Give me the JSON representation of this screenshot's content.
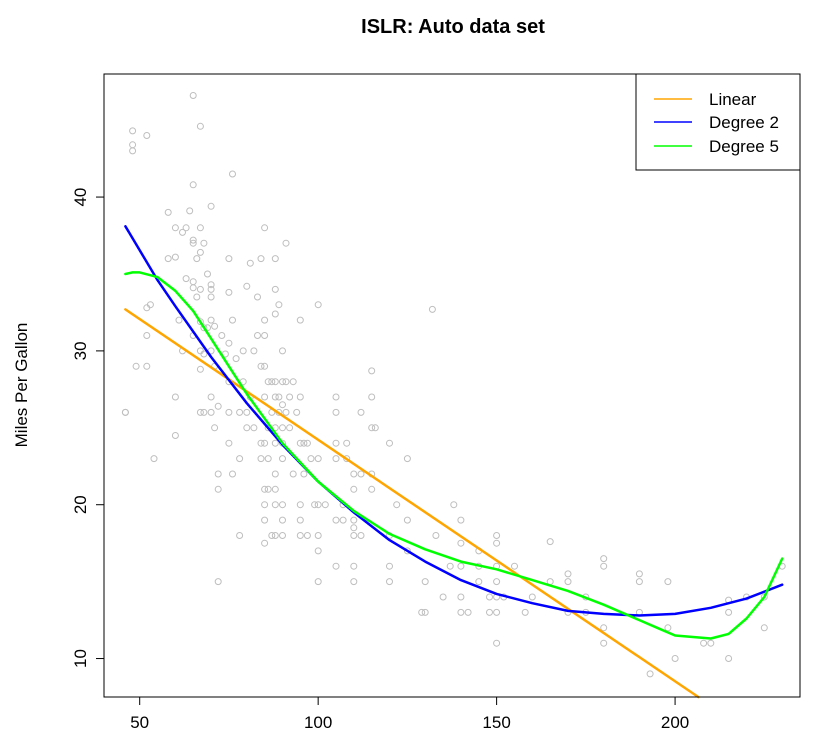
{
  "chart_data": {
    "type": "scatter",
    "title": "ISLR: Auto data set",
    "xlabel": "",
    "ylabel": "Miles Per Gallon",
    "xlim": [
      40,
      235
    ],
    "ylim": [
      7.5,
      48
    ],
    "x_ticks": [
      50,
      100,
      150,
      200
    ],
    "y_ticks": [
      10,
      20,
      30,
      40
    ],
    "grid": false,
    "legend_position": "top-right",
    "colors": {
      "points": "#bebebe",
      "linear": "#ffa500",
      "degree2": "#0000ff",
      "degree5": "#00ff00"
    },
    "scatter": [
      [
        46,
        26
      ],
      [
        46,
        26
      ],
      [
        48,
        43
      ],
      [
        48,
        43.4
      ],
      [
        48,
        44.3
      ],
      [
        49,
        29
      ],
      [
        52,
        29
      ],
      [
        52,
        31
      ],
      [
        52,
        44
      ],
      [
        52,
        32.8
      ],
      [
        53,
        33
      ],
      [
        54,
        23
      ],
      [
        58,
        39
      ],
      [
        58,
        36
      ],
      [
        60,
        38
      ],
      [
        60,
        36.1
      ],
      [
        60,
        27
      ],
      [
        60,
        24.5
      ],
      [
        61,
        32
      ],
      [
        62,
        37.7
      ],
      [
        62,
        30
      ],
      [
        63,
        38
      ],
      [
        63,
        34.7
      ],
      [
        64,
        39.1
      ],
      [
        65,
        46.6
      ],
      [
        65,
        40.8
      ],
      [
        65,
        37.2
      ],
      [
        65,
        37
      ],
      [
        65,
        34.1
      ],
      [
        65,
        34.5
      ],
      [
        65,
        31
      ],
      [
        66,
        36
      ],
      [
        66,
        33.5
      ],
      [
        67,
        44.6
      ],
      [
        67,
        38
      ],
      [
        67,
        36.4
      ],
      [
        67,
        34
      ],
      [
        67,
        31.9
      ],
      [
        67,
        30
      ],
      [
        67,
        28.8
      ],
      [
        67,
        26
      ],
      [
        68,
        37
      ],
      [
        68,
        31.5
      ],
      [
        68,
        29.8
      ],
      [
        68,
        26
      ],
      [
        69,
        35
      ],
      [
        69,
        31.5
      ],
      [
        70,
        39.4
      ],
      [
        70,
        34.3
      ],
      [
        70,
        34
      ],
      [
        70,
        33.5
      ],
      [
        70,
        32
      ],
      [
        70,
        30
      ],
      [
        70,
        27
      ],
      [
        70,
        26
      ],
      [
        71,
        31.6
      ],
      [
        71,
        29
      ],
      [
        71,
        25
      ],
      [
        72,
        21
      ],
      [
        72,
        22
      ],
      [
        72,
        15
      ],
      [
        72,
        26.4
      ],
      [
        73,
        31
      ],
      [
        74,
        29.8
      ],
      [
        75,
        36
      ],
      [
        75,
        33.8
      ],
      [
        75,
        30.5
      ],
      [
        75,
        28
      ],
      [
        75,
        26
      ],
      [
        75,
        24
      ],
      [
        76,
        41.5
      ],
      [
        76,
        32
      ],
      [
        76,
        22
      ],
      [
        77,
        29.5
      ],
      [
        78,
        23
      ],
      [
        78,
        18
      ],
      [
        78,
        26
      ],
      [
        79,
        28
      ],
      [
        79,
        30
      ],
      [
        80,
        34.2
      ],
      [
        80,
        26
      ],
      [
        80,
        25
      ],
      [
        81,
        35.7
      ],
      [
        81,
        27
      ],
      [
        82,
        30
      ],
      [
        82,
        25
      ],
      [
        83,
        33.5
      ],
      [
        83,
        31
      ],
      [
        84,
        36
      ],
      [
        84,
        29
      ],
      [
        84,
        24
      ],
      [
        84,
        23
      ],
      [
        85,
        38
      ],
      [
        85,
        32
      ],
      [
        85,
        31
      ],
      [
        85,
        29
      ],
      [
        85,
        27
      ],
      [
        85,
        24
      ],
      [
        85,
        21
      ],
      [
        85,
        20
      ],
      [
        85,
        19
      ],
      [
        85,
        17.5
      ],
      [
        86,
        28
      ],
      [
        86,
        25
      ],
      [
        86,
        23
      ],
      [
        86,
        21
      ],
      [
        87,
        28
      ],
      [
        87,
        26
      ],
      [
        87,
        18
      ],
      [
        88,
        36
      ],
      [
        88,
        34
      ],
      [
        88,
        32.4
      ],
      [
        88,
        28
      ],
      [
        88,
        27
      ],
      [
        88,
        25
      ],
      [
        88,
        24
      ],
      [
        88,
        22
      ],
      [
        88,
        21
      ],
      [
        88,
        20
      ],
      [
        88,
        18
      ],
      [
        89,
        33
      ],
      [
        89,
        27
      ],
      [
        89,
        26
      ],
      [
        90,
        30
      ],
      [
        90,
        28
      ],
      [
        90,
        26.5
      ],
      [
        90,
        25
      ],
      [
        90,
        24
      ],
      [
        90,
        23
      ],
      [
        90,
        20
      ],
      [
        90,
        19
      ],
      [
        90,
        18
      ],
      [
        91,
        37
      ],
      [
        91,
        28
      ],
      [
        91,
        26
      ],
      [
        92,
        27
      ],
      [
        92,
        25
      ],
      [
        93,
        28
      ],
      [
        93,
        22
      ],
      [
        94,
        26
      ],
      [
        95,
        32
      ],
      [
        95,
        27
      ],
      [
        95,
        24
      ],
      [
        95,
        20
      ],
      [
        95,
        19
      ],
      [
        95,
        18
      ],
      [
        96,
        24
      ],
      [
        96,
        22
      ],
      [
        97,
        24
      ],
      [
        97,
        18
      ],
      [
        98,
        23
      ],
      [
        99,
        20
      ],
      [
        100,
        33
      ],
      [
        100,
        23
      ],
      [
        100,
        20
      ],
      [
        100,
        18
      ],
      [
        100,
        17
      ],
      [
        100,
        15
      ],
      [
        102,
        20
      ],
      [
        105,
        27
      ],
      [
        105,
        26
      ],
      [
        105,
        24
      ],
      [
        105,
        23
      ],
      [
        105,
        19
      ],
      [
        105,
        16
      ],
      [
        107,
        20
      ],
      [
        107,
        19
      ],
      [
        108,
        24
      ],
      [
        108,
        23
      ],
      [
        110,
        22
      ],
      [
        110,
        21
      ],
      [
        110,
        19
      ],
      [
        110,
        18.5
      ],
      [
        110,
        18
      ],
      [
        110,
        16
      ],
      [
        110,
        15
      ],
      [
        112,
        26
      ],
      [
        112,
        22
      ],
      [
        112,
        18
      ],
      [
        115,
        28.7
      ],
      [
        115,
        27
      ],
      [
        115,
        25
      ],
      [
        115,
        22
      ],
      [
        115,
        21
      ],
      [
        116,
        25
      ],
      [
        120,
        24
      ],
      [
        120,
        18
      ],
      [
        120,
        16
      ],
      [
        120,
        15
      ],
      [
        122,
        20
      ],
      [
        125,
        23
      ],
      [
        125,
        19
      ],
      [
        125,
        17
      ],
      [
        129,
        13
      ],
      [
        130,
        13
      ],
      [
        130,
        15
      ],
      [
        132,
        32.7
      ],
      [
        133,
        18
      ],
      [
        135,
        14
      ],
      [
        137,
        16
      ],
      [
        138,
        20
      ],
      [
        140,
        19
      ],
      [
        140,
        17.5
      ],
      [
        140,
        16
      ],
      [
        140,
        14
      ],
      [
        140,
        13
      ],
      [
        142,
        13
      ],
      [
        145,
        17
      ],
      [
        145,
        16
      ],
      [
        145,
        15
      ],
      [
        148,
        14
      ],
      [
        148,
        13
      ],
      [
        150,
        18
      ],
      [
        150,
        17.5
      ],
      [
        150,
        16
      ],
      [
        150,
        15
      ],
      [
        150,
        14
      ],
      [
        150,
        13
      ],
      [
        150,
        11
      ],
      [
        152,
        14
      ],
      [
        155,
        16
      ],
      [
        158,
        13
      ],
      [
        160,
        14
      ],
      [
        165,
        17.6
      ],
      [
        165,
        15
      ],
      [
        170,
        15.5
      ],
      [
        170,
        15
      ],
      [
        170,
        13
      ],
      [
        175,
        14
      ],
      [
        175,
        13
      ],
      [
        180,
        16.5
      ],
      [
        180,
        16
      ],
      [
        180,
        12
      ],
      [
        180,
        11
      ],
      [
        190,
        15.5
      ],
      [
        190,
        15
      ],
      [
        190,
        13
      ],
      [
        193,
        9
      ],
      [
        198,
        15
      ],
      [
        198,
        12
      ],
      [
        200,
        10
      ],
      [
        208,
        11
      ],
      [
        210,
        11
      ],
      [
        215,
        13.8
      ],
      [
        215,
        13
      ],
      [
        215,
        10
      ],
      [
        220,
        14
      ],
      [
        225,
        14
      ],
      [
        225,
        12
      ],
      [
        230,
        16
      ]
    ],
    "series": [
      {
        "name": "Linear",
        "x": [
          46,
          206.5
        ],
        "y": [
          32.7,
          7.5
        ]
      },
      {
        "name": "Degree 2",
        "x": [
          46,
          55,
          60,
          70,
          80,
          90,
          100,
          110,
          120,
          130,
          140,
          150,
          160,
          170,
          180,
          190,
          200,
          210,
          220,
          230
        ],
        "y": [
          38.1,
          34.6,
          32.9,
          29.6,
          26.6,
          23.9,
          21.5,
          19.5,
          17.7,
          16.3,
          15.1,
          14.2,
          13.6,
          13.1,
          12.9,
          12.8,
          12.9,
          13.3,
          13.9,
          14.8
        ]
      },
      {
        "name": "Degree 5",
        "x": [
          46,
          48,
          50,
          55,
          60,
          65,
          70,
          75,
          80,
          90,
          100,
          110,
          120,
          130,
          140,
          150,
          160,
          170,
          180,
          190,
          195,
          200,
          205,
          210,
          215,
          220,
          225,
          230
        ],
        "y": [
          35,
          35.1,
          35.1,
          34.8,
          33.9,
          32.6,
          30.8,
          29,
          27.2,
          24,
          21.5,
          19.6,
          18.1,
          17.1,
          16.3,
          15.8,
          15.1,
          14.4,
          13.5,
          12.5,
          12,
          11.5,
          11.4,
          11.3,
          11.6,
          12.6,
          14,
          16.5
        ]
      }
    ]
  }
}
